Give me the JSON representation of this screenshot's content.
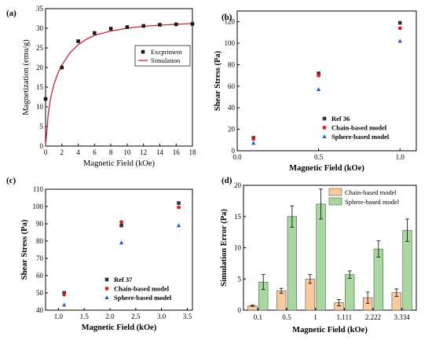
{
  "panels": {
    "a": "(a)",
    "b": "(b)",
    "c": "(c)",
    "d": "(d)"
  },
  "chart_data": [
    {
      "id": "a",
      "type": "scatter",
      "xlabel": "Magnetic Field (kOe)",
      "ylabel": "Magnetization (emu/g)",
      "xlim": [
        0,
        18
      ],
      "ylim": [
        0,
        35
      ],
      "xticks": [
        0,
        2,
        4,
        6,
        8,
        10,
        12,
        14,
        16,
        18
      ],
      "yticks": [
        0,
        5,
        10,
        15,
        20,
        25,
        30,
        35
      ],
      "legend_position": "bottom-right",
      "series": [
        {
          "name": "Excpriment",
          "marker": "square",
          "color": "#1a1a1a",
          "x": [
            0,
            2,
            4,
            6,
            8,
            10,
            12,
            14,
            16,
            18
          ],
          "y": [
            12,
            20,
            26.7,
            28.8,
            29.9,
            30.3,
            30.6,
            30.9,
            31.0,
            31.1
          ]
        },
        {
          "name": "Simulation",
          "marker": "line",
          "color": "#c0272d",
          "x": [
            0,
            0.3,
            0.6,
            1,
            1.5,
            2,
            3,
            4,
            5,
            6,
            8,
            10,
            12,
            14,
            16,
            18
          ],
          "y": [
            0,
            7.5,
            12,
            15.5,
            18.5,
            20.6,
            23.8,
            25.8,
            27.2,
            28.2,
            29.3,
            30.0,
            30.5,
            30.8,
            31.0,
            31.2
          ]
        }
      ]
    },
    {
      "id": "b",
      "type": "scatter",
      "xlabel": "Magnetic Field (kOe)",
      "ylabel": "Shear Stress (Pa)",
      "xlim": [
        0,
        1.1
      ],
      "ylim": [
        0,
        130
      ],
      "xticks": [
        0.0,
        0.5,
        1.0
      ],
      "xticklabels": [
        "0.0",
        "0.5",
        "1.0"
      ],
      "yticks": [
        0,
        20,
        40,
        60,
        80,
        100,
        120
      ],
      "legend_position": "bottom-right",
      "series": [
        {
          "name": "Ref 36",
          "marker": "square",
          "color": "#333333",
          "x": [
            0.1,
            0.5,
            1.0
          ],
          "y": [
            12,
            72,
            119
          ]
        },
        {
          "name": "Chain-based model",
          "marker": "circle",
          "color": "#e31a1c",
          "x": [
            0.1,
            0.5,
            1.0
          ],
          "y": [
            11,
            70,
            114
          ]
        },
        {
          "name": "Sphere-based model",
          "marker": "triangle",
          "color": "#1f5fbf",
          "x": [
            0.1,
            0.5,
            1.0
          ],
          "y": [
            7,
            57,
            102
          ]
        }
      ]
    },
    {
      "id": "c",
      "type": "scatter",
      "xlabel": "Magnetic Field (kOe)",
      "ylabel": "Shear Stress (Pa)",
      "xlim": [
        0.75,
        3.6
      ],
      "ylim": [
        40,
        110
      ],
      "xticks": [
        1.0,
        1.5,
        2.0,
        2.5,
        3.0,
        3.5
      ],
      "xticklabels": [
        "1.0",
        "1.5",
        "2.0",
        "2.5",
        "3.0",
        "3.5"
      ],
      "yticks": [
        40,
        50,
        60,
        70,
        80,
        90,
        100,
        110
      ],
      "legend_position": "bottom-right",
      "series": [
        {
          "name": "Ref 37",
          "marker": "square",
          "color": "#333333",
          "x": [
            1.111,
            2.222,
            3.334
          ],
          "y": [
            50,
            89,
            102
          ]
        },
        {
          "name": "Chain-based model",
          "marker": "circle",
          "color": "#e31a1c",
          "x": [
            1.111,
            2.222,
            3.334
          ],
          "y": [
            49,
            91,
            99.5
          ]
        },
        {
          "name": "Sphere-based model",
          "marker": "triangle",
          "color": "#1f5fbf",
          "x": [
            1.111,
            2.222,
            3.334
          ],
          "y": [
            43,
            79,
            89
          ]
        }
      ]
    },
    {
      "id": "d",
      "type": "bar",
      "xlabel": "Magnetic Field (kOe)",
      "ylabel": "Simulation Error (Pa)",
      "categories": [
        "0.1",
        "0.5",
        "1",
        "1.111",
        "2.222",
        "3.334"
      ],
      "ylim": [
        0,
        20
      ],
      "yticks": [
        0,
        5,
        10,
        15,
        20
      ],
      "legend_position": "top-right",
      "series": [
        {
          "name": "Chain-based model",
          "color": "#f9cb9c",
          "values": [
            0.7,
            3.1,
            5.0,
            1.2,
            2.0,
            2.8
          ],
          "errors": [
            0.1,
            0.4,
            0.7,
            0.5,
            0.9,
            0.6
          ]
        },
        {
          "name": "Sphere-based model",
          "color": "#a8d8a0",
          "values": [
            4.5,
            15.0,
            17.0,
            5.7,
            9.8,
            12.8
          ],
          "errors": [
            1.2,
            1.7,
            2.4,
            0.6,
            1.3,
            1.8
          ]
        }
      ]
    }
  ]
}
